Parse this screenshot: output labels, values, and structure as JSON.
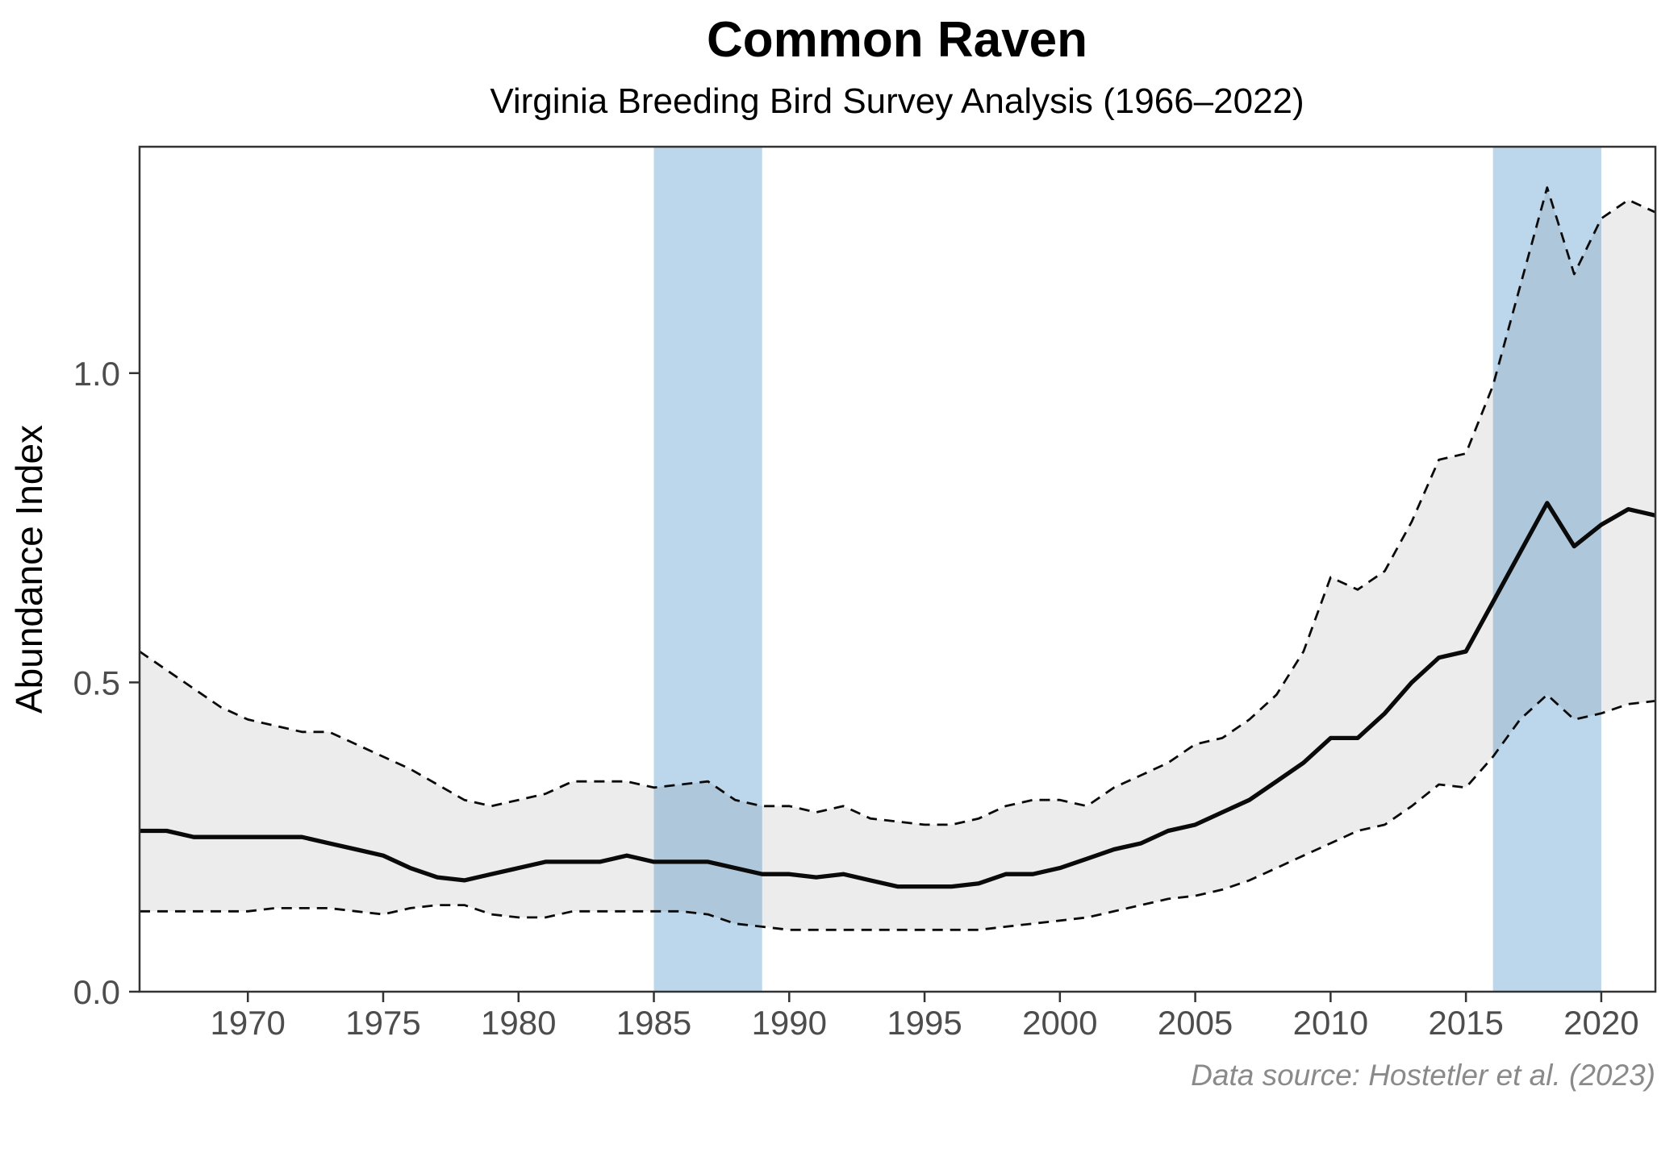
{
  "title": "Common Raven",
  "subtitle": "Virginia Breeding Bird Survey Analysis (1966–2022)",
  "caption": "Data source: Hostetler et al. (2023)",
  "chart_data": {
    "type": "line",
    "title": "Common Raven",
    "subtitle": "Virginia Breeding Bird Survey Analysis (1966–2022)",
    "xlabel": "",
    "ylabel": "Abundance Index",
    "xlim": [
      1966,
      2022
    ],
    "ylim": [
      0,
      1.366
    ],
    "x_ticks": [
      1970,
      1975,
      1980,
      1985,
      1990,
      1995,
      2000,
      2005,
      2010,
      2015,
      2020
    ],
    "y_ticks": [
      0.0,
      0.5,
      1.0
    ],
    "y_tick_labels": [
      "0.0",
      "0.5",
      "1.0"
    ],
    "grid": false,
    "legend": "none",
    "x": [
      1966,
      1967,
      1968,
      1969,
      1970,
      1971,
      1972,
      1973,
      1974,
      1975,
      1976,
      1977,
      1978,
      1979,
      1980,
      1981,
      1982,
      1983,
      1984,
      1985,
      1986,
      1987,
      1988,
      1989,
      1990,
      1991,
      1992,
      1993,
      1994,
      1995,
      1996,
      1997,
      1998,
      1999,
      2000,
      2001,
      2002,
      2003,
      2004,
      2005,
      2006,
      2007,
      2008,
      2009,
      2010,
      2011,
      2012,
      2013,
      2014,
      2015,
      2016,
      2017,
      2018,
      2019,
      2020,
      2021,
      2022
    ],
    "series": [
      {
        "id": "abundance-index",
        "style": "solid",
        "values": [
          0.26,
          0.26,
          0.25,
          0.25,
          0.25,
          0.25,
          0.25,
          0.24,
          0.23,
          0.22,
          0.2,
          0.185,
          0.18,
          0.19,
          0.2,
          0.21,
          0.21,
          0.21,
          0.22,
          0.21,
          0.21,
          0.21,
          0.2,
          0.19,
          0.19,
          0.185,
          0.19,
          0.18,
          0.17,
          0.17,
          0.17,
          0.175,
          0.19,
          0.19,
          0.2,
          0.215,
          0.23,
          0.24,
          0.26,
          0.27,
          0.29,
          0.31,
          0.34,
          0.37,
          0.41,
          0.41,
          0.45,
          0.5,
          0.54,
          0.55,
          0.63,
          0.71,
          0.79,
          0.72,
          0.755,
          0.78,
          0.77
        ]
      },
      {
        "id": "upper-95ci",
        "style": "dashed",
        "values": [
          0.55,
          0.52,
          0.49,
          0.46,
          0.44,
          0.43,
          0.42,
          0.42,
          0.4,
          0.38,
          0.36,
          0.335,
          0.31,
          0.3,
          0.31,
          0.32,
          0.34,
          0.34,
          0.34,
          0.33,
          0.335,
          0.34,
          0.31,
          0.3,
          0.3,
          0.29,
          0.3,
          0.28,
          0.275,
          0.27,
          0.27,
          0.28,
          0.3,
          0.31,
          0.31,
          0.3,
          0.33,
          0.35,
          0.37,
          0.4,
          0.41,
          0.44,
          0.48,
          0.55,
          0.67,
          0.65,
          0.68,
          0.76,
          0.86,
          0.87,
          0.98,
          1.14,
          1.3,
          1.16,
          1.25,
          1.28,
          1.26
        ]
      },
      {
        "id": "lower-95ci",
        "style": "dashed",
        "values": [
          0.13,
          0.13,
          0.13,
          0.13,
          0.13,
          0.135,
          0.135,
          0.135,
          0.13,
          0.125,
          0.135,
          0.14,
          0.14,
          0.125,
          0.12,
          0.12,
          0.13,
          0.13,
          0.13,
          0.13,
          0.13,
          0.125,
          0.11,
          0.105,
          0.1,
          0.1,
          0.1,
          0.1,
          0.1,
          0.1,
          0.1,
          0.1,
          0.105,
          0.11,
          0.115,
          0.12,
          0.13,
          0.14,
          0.15,
          0.155,
          0.165,
          0.18,
          0.2,
          0.22,
          0.24,
          0.26,
          0.27,
          0.3,
          0.335,
          0.33,
          0.38,
          0.44,
          0.48,
          0.44,
          0.45,
          0.465,
          0.47
        ]
      }
    ],
    "highlight_bands": [
      {
        "from": 1985,
        "to": 1989
      },
      {
        "from": 2016,
        "to": 2020
      }
    ],
    "colors": {
      "band": "#bcd7ec",
      "ribbon": "#000000",
      "ribbon_opacity": "0.075",
      "line": "#0a0a0a",
      "axis": "#333333",
      "tick_text": "#4d4d4d",
      "caption_text": "#8a8a8a"
    }
  }
}
